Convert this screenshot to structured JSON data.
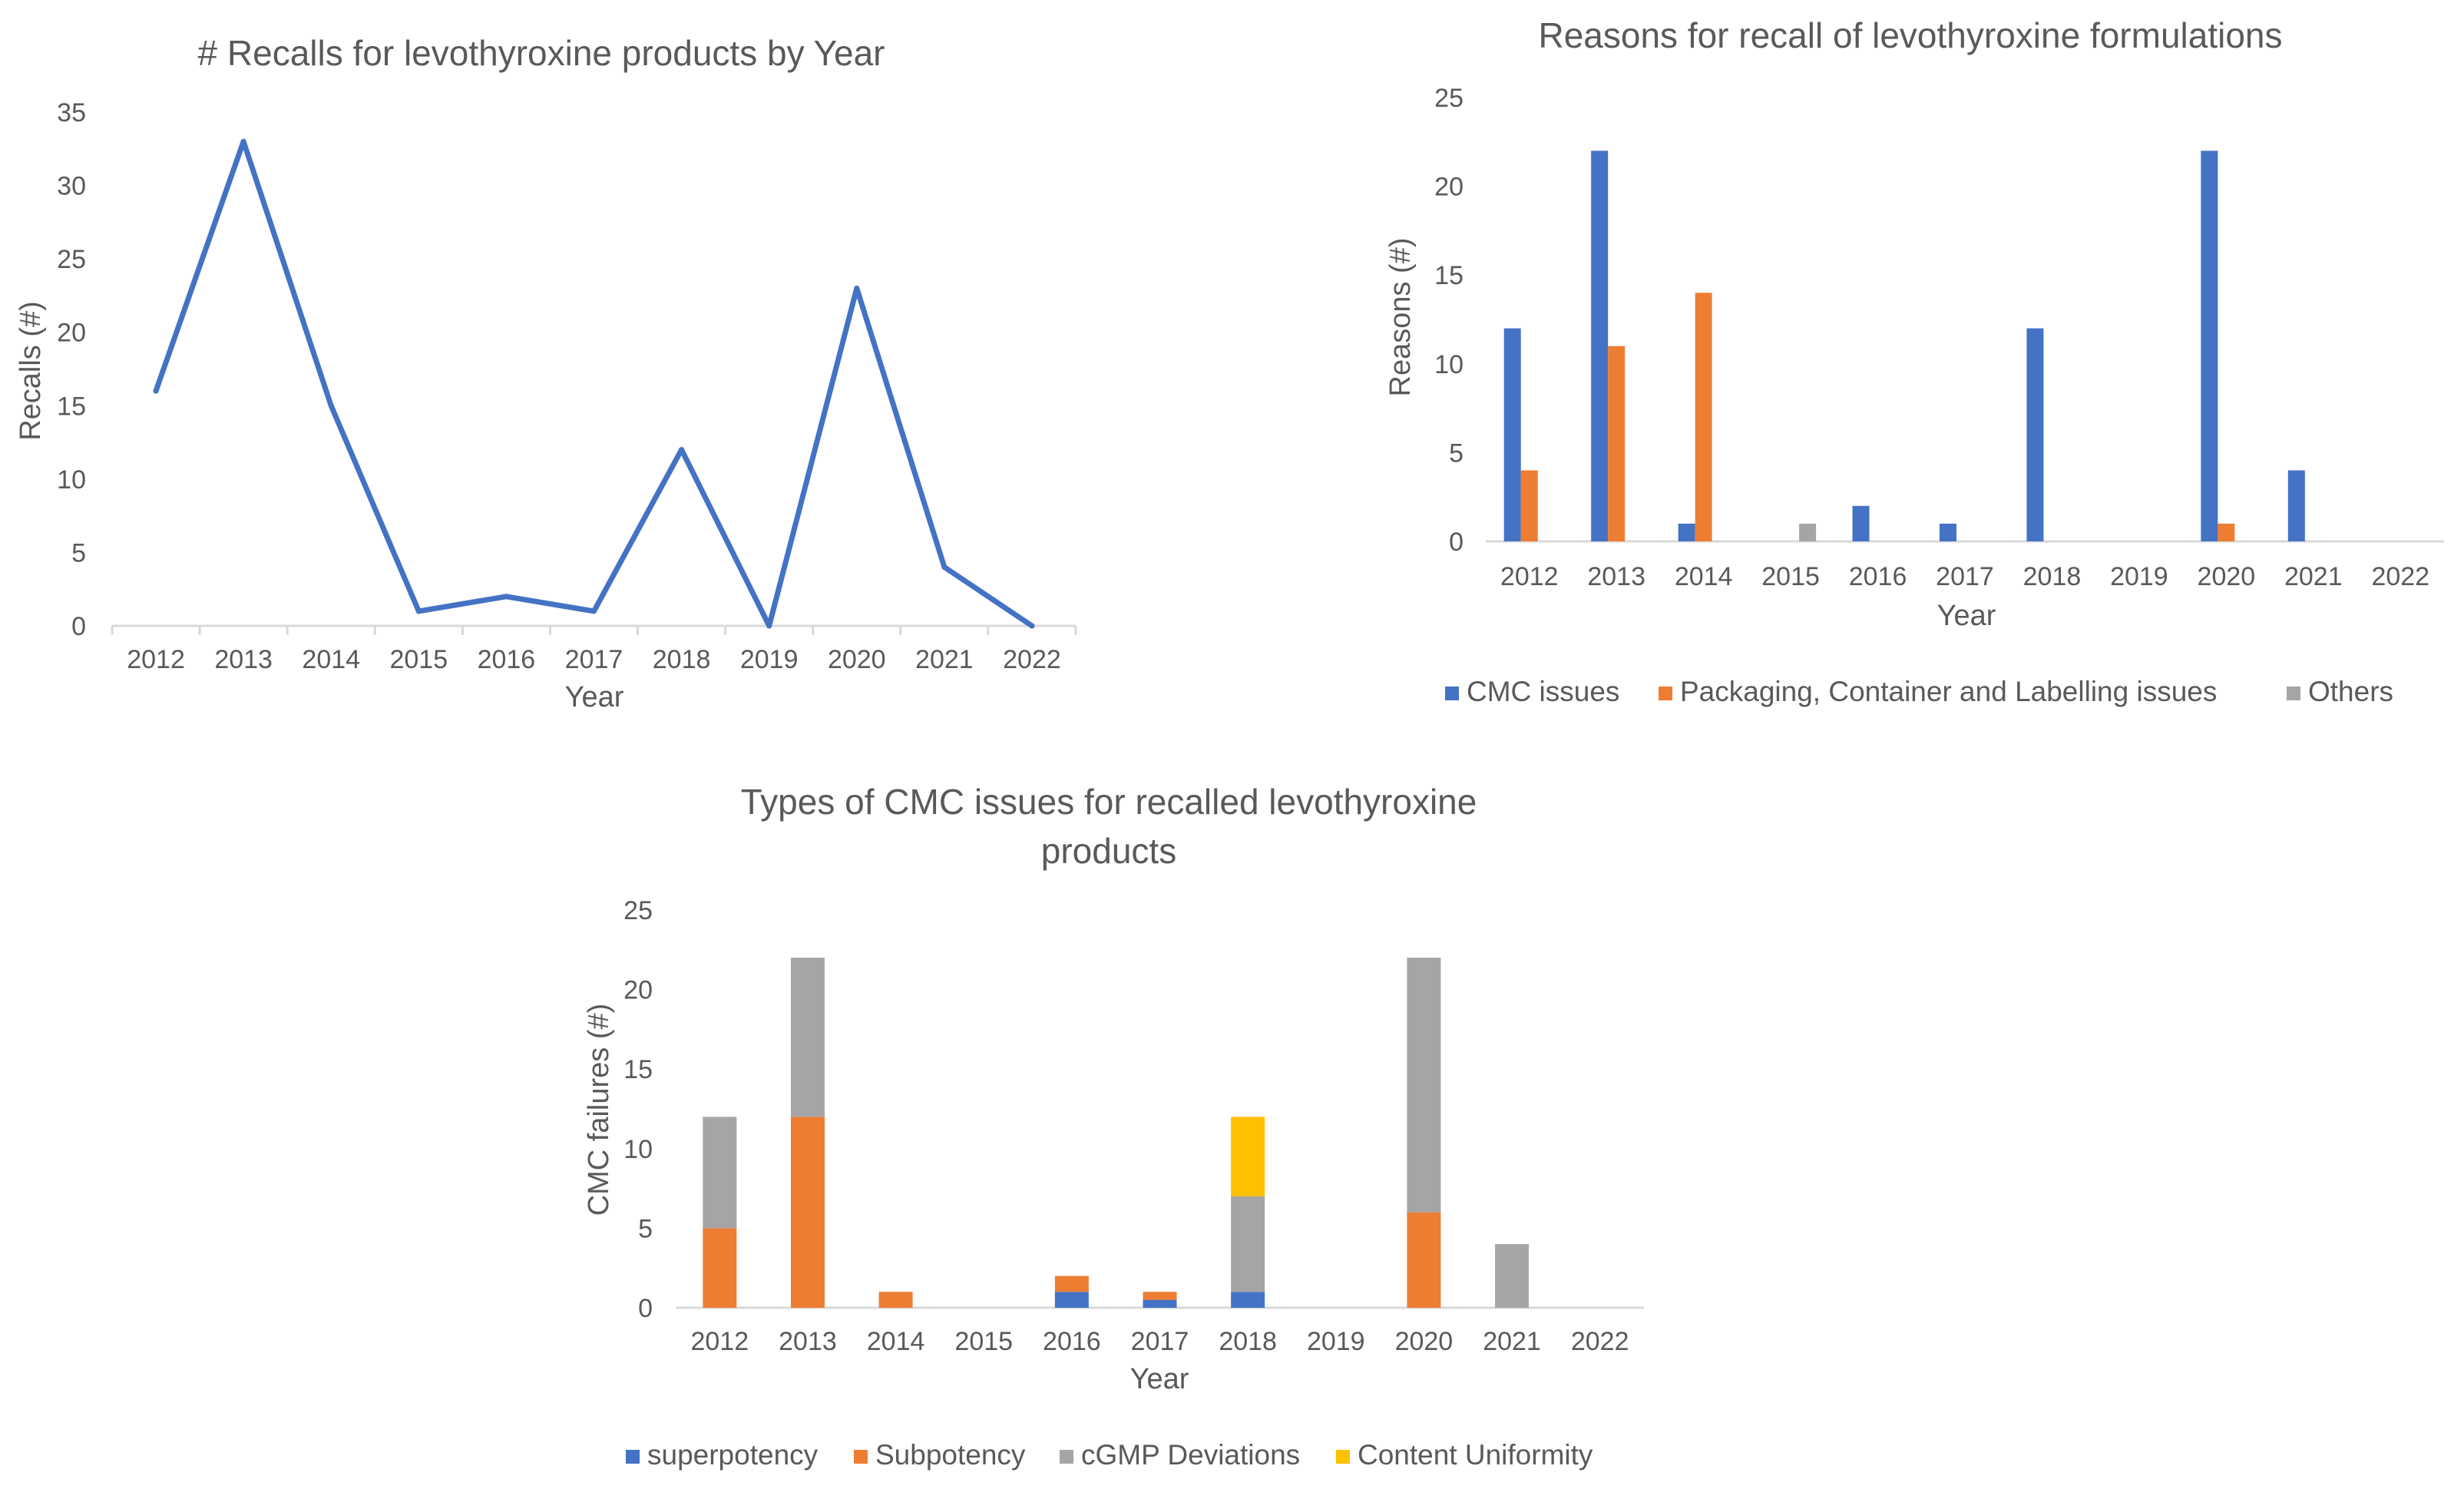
{
  "chart_data": [
    {
      "type": "line",
      "title": "# Recalls for levothyroxine products by Year",
      "xlabel": "Year",
      "ylabel": "Recalls (#)",
      "categories": [
        "2012",
        "2013",
        "2014",
        "2015",
        "2016",
        "2017",
        "2018",
        "2019",
        "2020",
        "2021",
        "2022"
      ],
      "series": [
        {
          "color": "#4472c4",
          "values": [
            16,
            33,
            15,
            1,
            2,
            1,
            12,
            0,
            23,
            4,
            0
          ]
        }
      ],
      "yticks": [
        "0",
        "5",
        "10",
        "15",
        "20",
        "25",
        "30",
        "35"
      ],
      "ylim": [
        0,
        35
      ],
      "grid": false
    },
    {
      "type": "bar",
      "title": "Reasons for recall of levothyroxine formulations",
      "xlabel": "Year",
      "ylabel": "Reasons (#)",
      "categories": [
        "2012",
        "2013",
        "2014",
        "2015",
        "2016",
        "2017",
        "2018",
        "2019",
        "2020",
        "2021",
        "2022"
      ],
      "series": [
        {
          "name": "CMC issues",
          "color": "#4472c4",
          "values": [
            12,
            22,
            1,
            0,
            2,
            1,
            12,
            0,
            22,
            4,
            0
          ]
        },
        {
          "name": "Packaging, Container and  Labelling issues",
          "color": "#ed7d31",
          "values": [
            4,
            11,
            14,
            0,
            0,
            0,
            0,
            0,
            1,
            0,
            0
          ]
        },
        {
          "name": "Others",
          "color": "#a5a5a5",
          "values": [
            0,
            0,
            0,
            1,
            0,
            0,
            0,
            0,
            0,
            0,
            0
          ]
        }
      ],
      "yticks": [
        "0",
        "5",
        "10",
        "15",
        "20",
        "25"
      ],
      "ylim": [
        0,
        25
      ],
      "legend": "bottom",
      "grid": false
    },
    {
      "type": "bar",
      "stacked": true,
      "title": "Types of CMC issues for recalled levothyroxine products",
      "title_lines": [
        "Types of CMC issues for recalled levothyroxine",
        "products"
      ],
      "xlabel": "Year",
      "ylabel": "CMC failures  (#)",
      "categories": [
        "2012",
        "2013",
        "2014",
        "2015",
        "2016",
        "2017",
        "2018",
        "2019",
        "2020",
        "2021",
        "2022"
      ],
      "series": [
        {
          "name": "superpotency",
          "color": "#4472c4",
          "values": [
            0,
            0,
            0,
            0,
            1,
            0.5,
            1,
            0,
            0,
            0,
            0
          ]
        },
        {
          "name": "Subpotency",
          "color": "#ed7d31",
          "values": [
            5,
            12,
            1,
            0,
            1,
            0.5,
            0,
            0,
            6,
            0,
            0
          ]
        },
        {
          "name": "cGMP Deviations",
          "color": "#a5a5a5",
          "values": [
            7,
            10,
            0,
            0,
            0,
            0,
            6,
            0,
            16,
            4,
            0
          ]
        },
        {
          "name": "Content Uniformity",
          "color": "#ffc000",
          "values": [
            0,
            0,
            0,
            0,
            0,
            0,
            5,
            0,
            0,
            0,
            0
          ]
        }
      ],
      "yticks": [
        "0",
        "5",
        "10",
        "15",
        "20",
        "25"
      ],
      "ylim": [
        0,
        25
      ],
      "legend": "bottom",
      "grid": false
    }
  ]
}
